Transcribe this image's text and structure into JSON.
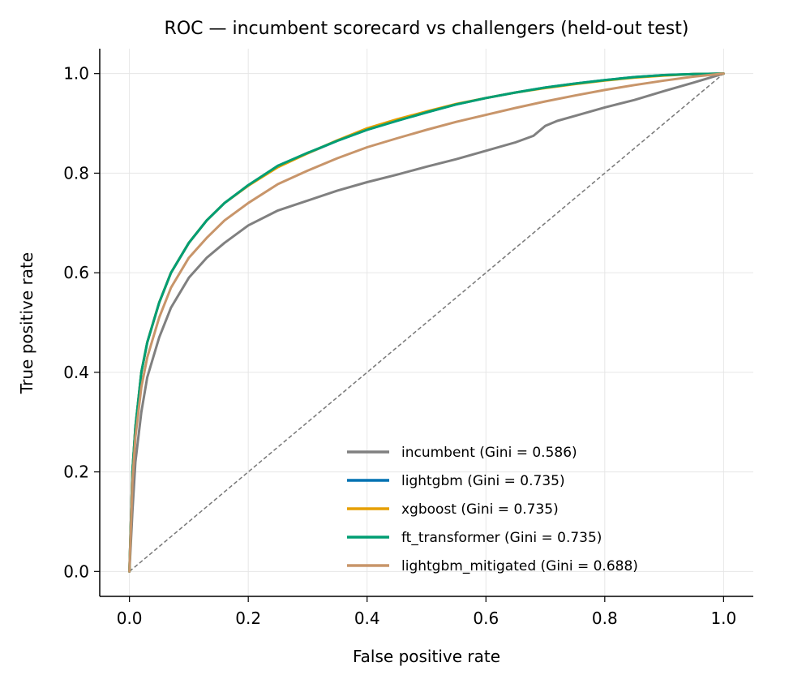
{
  "chart_data": {
    "type": "line",
    "title": "ROC — incumbent scorecard vs challengers (held-out test)",
    "xlabel": "False positive rate",
    "ylabel": "True positive rate",
    "xlim": [
      -0.05,
      1.05
    ],
    "ylim": [
      -0.05,
      1.05
    ],
    "xticks": [
      0.0,
      0.2,
      0.4,
      0.6,
      0.8,
      1.0
    ],
    "yticks": [
      0.0,
      0.2,
      0.4,
      0.6,
      0.8,
      1.0
    ],
    "xtick_labels": [
      "0.0",
      "0.2",
      "0.4",
      "0.6",
      "0.8",
      "1.0"
    ],
    "ytick_labels": [
      "0.0",
      "0.2",
      "0.4",
      "0.6",
      "0.8",
      "1.0"
    ],
    "grid": true,
    "legend_position": "lower-right",
    "diagonal": {
      "x": [
        0,
        1
      ],
      "y": [
        0,
        1
      ],
      "color": "#777777",
      "style": "dashed"
    },
    "series": [
      {
        "name": "incumbent  (Gini = 0.586)",
        "color": "#808080",
        "x": [
          0,
          0.005,
          0.01,
          0.02,
          0.03,
          0.05,
          0.07,
          0.1,
          0.13,
          0.16,
          0.2,
          0.25,
          0.3,
          0.35,
          0.4,
          0.45,
          0.5,
          0.55,
          0.6,
          0.65,
          0.68,
          0.7,
          0.72,
          0.75,
          0.8,
          0.85,
          0.9,
          0.95,
          1.0
        ],
        "y": [
          0,
          0.12,
          0.22,
          0.32,
          0.39,
          0.47,
          0.53,
          0.59,
          0.63,
          0.66,
          0.695,
          0.725,
          0.745,
          0.765,
          0.782,
          0.797,
          0.813,
          0.828,
          0.845,
          0.862,
          0.875,
          0.895,
          0.905,
          0.915,
          0.932,
          0.947,
          0.965,
          0.982,
          1.0
        ]
      },
      {
        "name": "lightgbm  (Gini = 0.735)",
        "color": "#0072B2",
        "x": [
          0,
          0.005,
          0.01,
          0.02,
          0.03,
          0.05,
          0.07,
          0.1,
          0.13,
          0.16,
          0.2,
          0.25,
          0.3,
          0.35,
          0.4,
          0.45,
          0.5,
          0.55,
          0.6,
          0.65,
          0.7,
          0.75,
          0.8,
          0.85,
          0.9,
          0.95,
          1.0
        ],
        "y": [
          0,
          0.2,
          0.29,
          0.4,
          0.46,
          0.54,
          0.6,
          0.66,
          0.705,
          0.74,
          0.775,
          0.815,
          0.84,
          0.865,
          0.887,
          0.905,
          0.922,
          0.938,
          0.951,
          0.962,
          0.972,
          0.98,
          0.987,
          0.993,
          0.997,
          0.999,
          1.0
        ]
      },
      {
        "name": "xgboost  (Gini = 0.735)",
        "color": "#E69F00",
        "x": [
          0,
          0.005,
          0.01,
          0.02,
          0.03,
          0.05,
          0.07,
          0.1,
          0.13,
          0.16,
          0.2,
          0.25,
          0.3,
          0.35,
          0.4,
          0.45,
          0.5,
          0.55,
          0.6,
          0.65,
          0.7,
          0.75,
          0.8,
          0.85,
          0.9,
          0.95,
          1.0
        ],
        "y": [
          0,
          0.2,
          0.29,
          0.4,
          0.46,
          0.54,
          0.6,
          0.66,
          0.705,
          0.74,
          0.775,
          0.812,
          0.84,
          0.866,
          0.89,
          0.908,
          0.924,
          0.939,
          0.951,
          0.962,
          0.971,
          0.979,
          0.986,
          0.992,
          0.996,
          0.999,
          1.0
        ]
      },
      {
        "name": "ft_transformer  (Gini = 0.735)",
        "color": "#009E73",
        "x": [
          0,
          0.005,
          0.01,
          0.02,
          0.03,
          0.05,
          0.07,
          0.1,
          0.13,
          0.16,
          0.2,
          0.25,
          0.3,
          0.35,
          0.4,
          0.45,
          0.5,
          0.55,
          0.6,
          0.65,
          0.7,
          0.75,
          0.8,
          0.85,
          0.9,
          0.95,
          1.0
        ],
        "y": [
          0,
          0.2,
          0.29,
          0.4,
          0.46,
          0.54,
          0.6,
          0.66,
          0.705,
          0.74,
          0.776,
          0.815,
          0.841,
          0.865,
          0.887,
          0.905,
          0.922,
          0.938,
          0.951,
          0.962,
          0.972,
          0.98,
          0.987,
          0.993,
          0.997,
          0.999,
          1.0
        ]
      },
      {
        "name": "lightgbm_mitigated  (Gini = 0.688)",
        "color": "#C8956A",
        "x": [
          0,
          0.005,
          0.01,
          0.02,
          0.03,
          0.05,
          0.07,
          0.1,
          0.13,
          0.16,
          0.2,
          0.25,
          0.3,
          0.35,
          0.4,
          0.45,
          0.5,
          0.55,
          0.6,
          0.65,
          0.7,
          0.75,
          0.8,
          0.85,
          0.9,
          0.95,
          1.0
        ],
        "y": [
          0,
          0.18,
          0.27,
          0.37,
          0.43,
          0.51,
          0.57,
          0.63,
          0.67,
          0.705,
          0.74,
          0.778,
          0.805,
          0.83,
          0.852,
          0.87,
          0.887,
          0.903,
          0.917,
          0.931,
          0.944,
          0.956,
          0.967,
          0.977,
          0.986,
          0.994,
          1.0
        ]
      }
    ]
  }
}
